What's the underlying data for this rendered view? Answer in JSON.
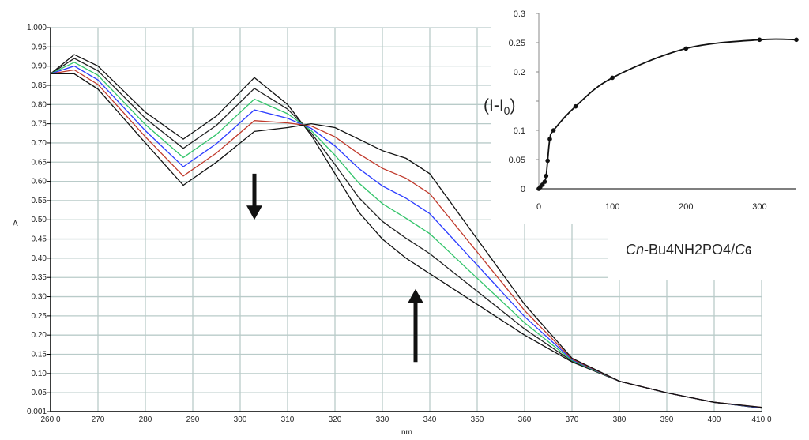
{
  "chart_data": [
    {
      "type": "line",
      "xlabel": "nm",
      "ylabel": "A",
      "xlim": [
        260,
        410
      ],
      "ylim": [
        0.001,
        1.0
      ],
      "grid": true,
      "x_tick_labels": [
        "260.0",
        "270",
        "280",
        "290",
        "300",
        "310",
        "320",
        "330",
        "340",
        "350",
        "360",
        "370",
        "380",
        "390",
        "400",
        "410.0"
      ],
      "y_tick_labels": [
        "0.001",
        "0.05",
        "0.10",
        "0.15",
        "0.20",
        "0.25",
        "0.30",
        "0.35",
        "0.40",
        "0.45",
        "0.50",
        "0.55",
        "0.60",
        "0.65",
        "0.70",
        "0.75",
        "0.80",
        "0.85",
        "0.90",
        "0.95",
        "1.000"
      ],
      "x": [
        260,
        265,
        270,
        280,
        288,
        295,
        303,
        310,
        315,
        320,
        325,
        330,
        335,
        340,
        350,
        360,
        370,
        380,
        390,
        400,
        410
      ],
      "series": [
        {
          "color": "#111111",
          "values": [
            0.88,
            0.93,
            0.9,
            0.78,
            0.71,
            0.77,
            0.87,
            0.8,
            0.72,
            0.62,
            0.52,
            0.45,
            0.4,
            0.36,
            0.28,
            0.2,
            0.13,
            0.08,
            0.05,
            0.025,
            0.01
          ]
        },
        {
          "color": "#222222",
          "values": [
            0.88,
            0.92,
            0.888,
            0.764,
            0.686,
            0.746,
            0.842,
            0.788,
            0.726,
            0.644,
            0.558,
            0.496,
            0.452,
            0.412,
            0.314,
            0.216,
            0.132,
            0.08,
            0.05,
            0.025,
            0.01
          ]
        },
        {
          "color": "#33c46a",
          "values": [
            0.88,
            0.91,
            0.876,
            0.748,
            0.662,
            0.722,
            0.814,
            0.776,
            0.732,
            0.668,
            0.596,
            0.542,
            0.504,
            0.464,
            0.348,
            0.232,
            0.134,
            0.08,
            0.05,
            0.025,
            0.011
          ]
        },
        {
          "color": "#2b3cff",
          "values": [
            0.88,
            0.9,
            0.864,
            0.732,
            0.638,
            0.698,
            0.786,
            0.764,
            0.738,
            0.692,
            0.634,
            0.588,
            0.556,
            0.516,
            0.382,
            0.248,
            0.136,
            0.08,
            0.05,
            0.025,
            0.011
          ]
        },
        {
          "color": "#c0392b",
          "values": [
            0.88,
            0.89,
            0.852,
            0.716,
            0.614,
            0.674,
            0.758,
            0.752,
            0.744,
            0.716,
            0.672,
            0.634,
            0.608,
            0.568,
            0.416,
            0.264,
            0.138,
            0.08,
            0.05,
            0.025,
            0.012
          ]
        },
        {
          "color": "#111111",
          "values": [
            0.88,
            0.88,
            0.84,
            0.7,
            0.59,
            0.65,
            0.73,
            0.74,
            0.75,
            0.74,
            0.71,
            0.68,
            0.66,
            0.62,
            0.45,
            0.28,
            0.14,
            0.08,
            0.05,
            0.025,
            0.012
          ]
        }
      ],
      "annotations": [
        {
          "type": "arrow",
          "direction": "down",
          "x": 303,
          "from": 0.62,
          "to": 0.5
        },
        {
          "type": "arrow",
          "direction": "up",
          "x": 337,
          "from": 0.13,
          "to": 0.32
        }
      ],
      "grid_color": "#b9cbc9"
    },
    {
      "type": "line",
      "xlabel_parts": {
        "c1": "C",
        "n": "n",
        "mid": "-Bu4NH2PO4/",
        "c2": "C",
        "six": "6"
      },
      "ylabel_parts": {
        "main": "(I-I",
        "sub": "0",
        "close": ")"
      },
      "xlim": [
        0,
        350
      ],
      "ylim": [
        0,
        0.3
      ],
      "x_ticks": [
        0,
        100,
        200,
        300
      ],
      "x_tick_labels": [
        "0",
        "100",
        "200",
        "300"
      ],
      "y_ticks": [
        0,
        0.05,
        0.1,
        0.2,
        0.25,
        0.3
      ],
      "y_tick_labels": [
        "0",
        "0.05",
        "0.1",
        "0.2",
        "0.25",
        "0.3"
      ],
      "points": [
        [
          0,
          0
        ],
        [
          2,
          0.003
        ],
        [
          5,
          0.007
        ],
        [
          8,
          0.012
        ],
        [
          10,
          0.022
        ],
        [
          12,
          0.048
        ],
        [
          15,
          0.085
        ],
        [
          20,
          0.1
        ],
        [
          50,
          0.141
        ],
        [
          100,
          0.19
        ],
        [
          200,
          0.24
        ],
        [
          300,
          0.255
        ],
        [
          350,
          0.255
        ]
      ],
      "marker": "circle",
      "color": "#111111"
    }
  ]
}
